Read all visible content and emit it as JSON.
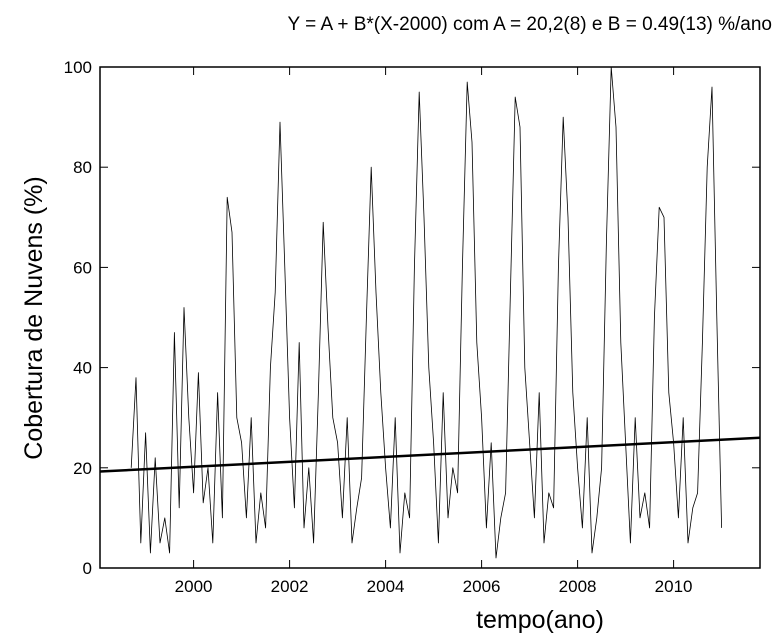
{
  "chart_data": {
    "type": "line",
    "title": "Y = A + B*(X-2000) com A = 20,2(8) e B = 0.49(13) %/ano",
    "x_label": "tempo(ano)",
    "y_label": "Cobertura de Nuvens (%)",
    "xlim": [
      1998.05,
      2011.8
    ],
    "ylim": [
      0,
      100
    ],
    "xticks": [
      2000,
      2002,
      2004,
      2006,
      2008,
      2010
    ],
    "yticks": [
      0,
      20,
      40,
      60,
      80,
      100
    ],
    "series": [
      {
        "color": "#000000",
        "width": 0.8,
        "x": [
          1998.7,
          1998.8,
          1998.9,
          1999.0,
          1999.1,
          1999.2,
          1999.3,
          1999.4,
          1999.5,
          1999.6,
          1999.7,
          1999.8,
          1999.9,
          2000.0,
          2000.1,
          2000.2,
          2000.3,
          2000.4,
          2000.5,
          2000.6,
          2000.7,
          2000.8,
          2000.9,
          2001.0,
          2001.1,
          2001.2,
          2001.3,
          2001.4,
          2001.5,
          2001.6,
          2001.7,
          2001.8,
          2001.9,
          2002.0,
          2002.1,
          2002.2,
          2002.3,
          2002.4,
          2002.5,
          2002.6,
          2002.7,
          2002.8,
          2002.9,
          2003.0,
          2003.1,
          2003.2,
          2003.3,
          2003.4,
          2003.5,
          2003.6,
          2003.7,
          2003.8,
          2003.9,
          2004.0,
          2004.1,
          2004.2,
          2004.3,
          2004.4,
          2004.5,
          2004.6,
          2004.7,
          2004.8,
          2004.9,
          2005.0,
          2005.1,
          2005.2,
          2005.3,
          2005.4,
          2005.5,
          2005.6,
          2005.7,
          2005.8,
          2005.9,
          2006.0,
          2006.1,
          2006.2,
          2006.3,
          2006.4,
          2006.5,
          2006.6,
          2006.7,
          2006.8,
          2006.9,
          2007.0,
          2007.1,
          2007.2,
          2007.3,
          2007.4,
          2007.5,
          2007.6,
          2007.7,
          2007.8,
          2007.9,
          2008.0,
          2008.1,
          2008.2,
          2008.3,
          2008.4,
          2008.5,
          2008.6,
          2008.7,
          2008.8,
          2008.9,
          2009.0,
          2009.1,
          2009.2,
          2009.3,
          2009.4,
          2009.5,
          2009.6,
          2009.7,
          2009.8,
          2009.9,
          2010.0,
          2010.1,
          2010.2,
          2010.3,
          2010.4,
          2010.5,
          2010.6,
          2010.7,
          2010.8,
          2010.9,
          2011.0
        ],
        "values": [
          20,
          38,
          5,
          27,
          3,
          22,
          5,
          10,
          3,
          47,
          12,
          52,
          30,
          15,
          39,
          13,
          20,
          5,
          35,
          10,
          74,
          67,
          30,
          25,
          10,
          30,
          5,
          15,
          8,
          40,
          55,
          89,
          60,
          30,
          12,
          45,
          8,
          20,
          5,
          35,
          69,
          48,
          30,
          25,
          10,
          30,
          5,
          12,
          18,
          50,
          80,
          55,
          35,
          20,
          8,
          30,
          3,
          15,
          10,
          60,
          95,
          70,
          40,
          25,
          5,
          35,
          10,
          20,
          15,
          60,
          97,
          85,
          45,
          30,
          8,
          25,
          2,
          10,
          15,
          55,
          94,
          88,
          40,
          25,
          10,
          35,
          5,
          15,
          12,
          60,
          90,
          70,
          35,
          20,
          8,
          30,
          3,
          10,
          20,
          65,
          100,
          88,
          45,
          25,
          5,
          30,
          10,
          15,
          8,
          50,
          72,
          70,
          35,
          25,
          10,
          30,
          5,
          12,
          15,
          45,
          80,
          96,
          50,
          8
        ]
      },
      {
        "color": "#000000",
        "width": 2.5,
        "x": [
          1998.05,
          2011.8
        ],
        "values": [
          19.25,
          25.99
        ]
      }
    ]
  }
}
